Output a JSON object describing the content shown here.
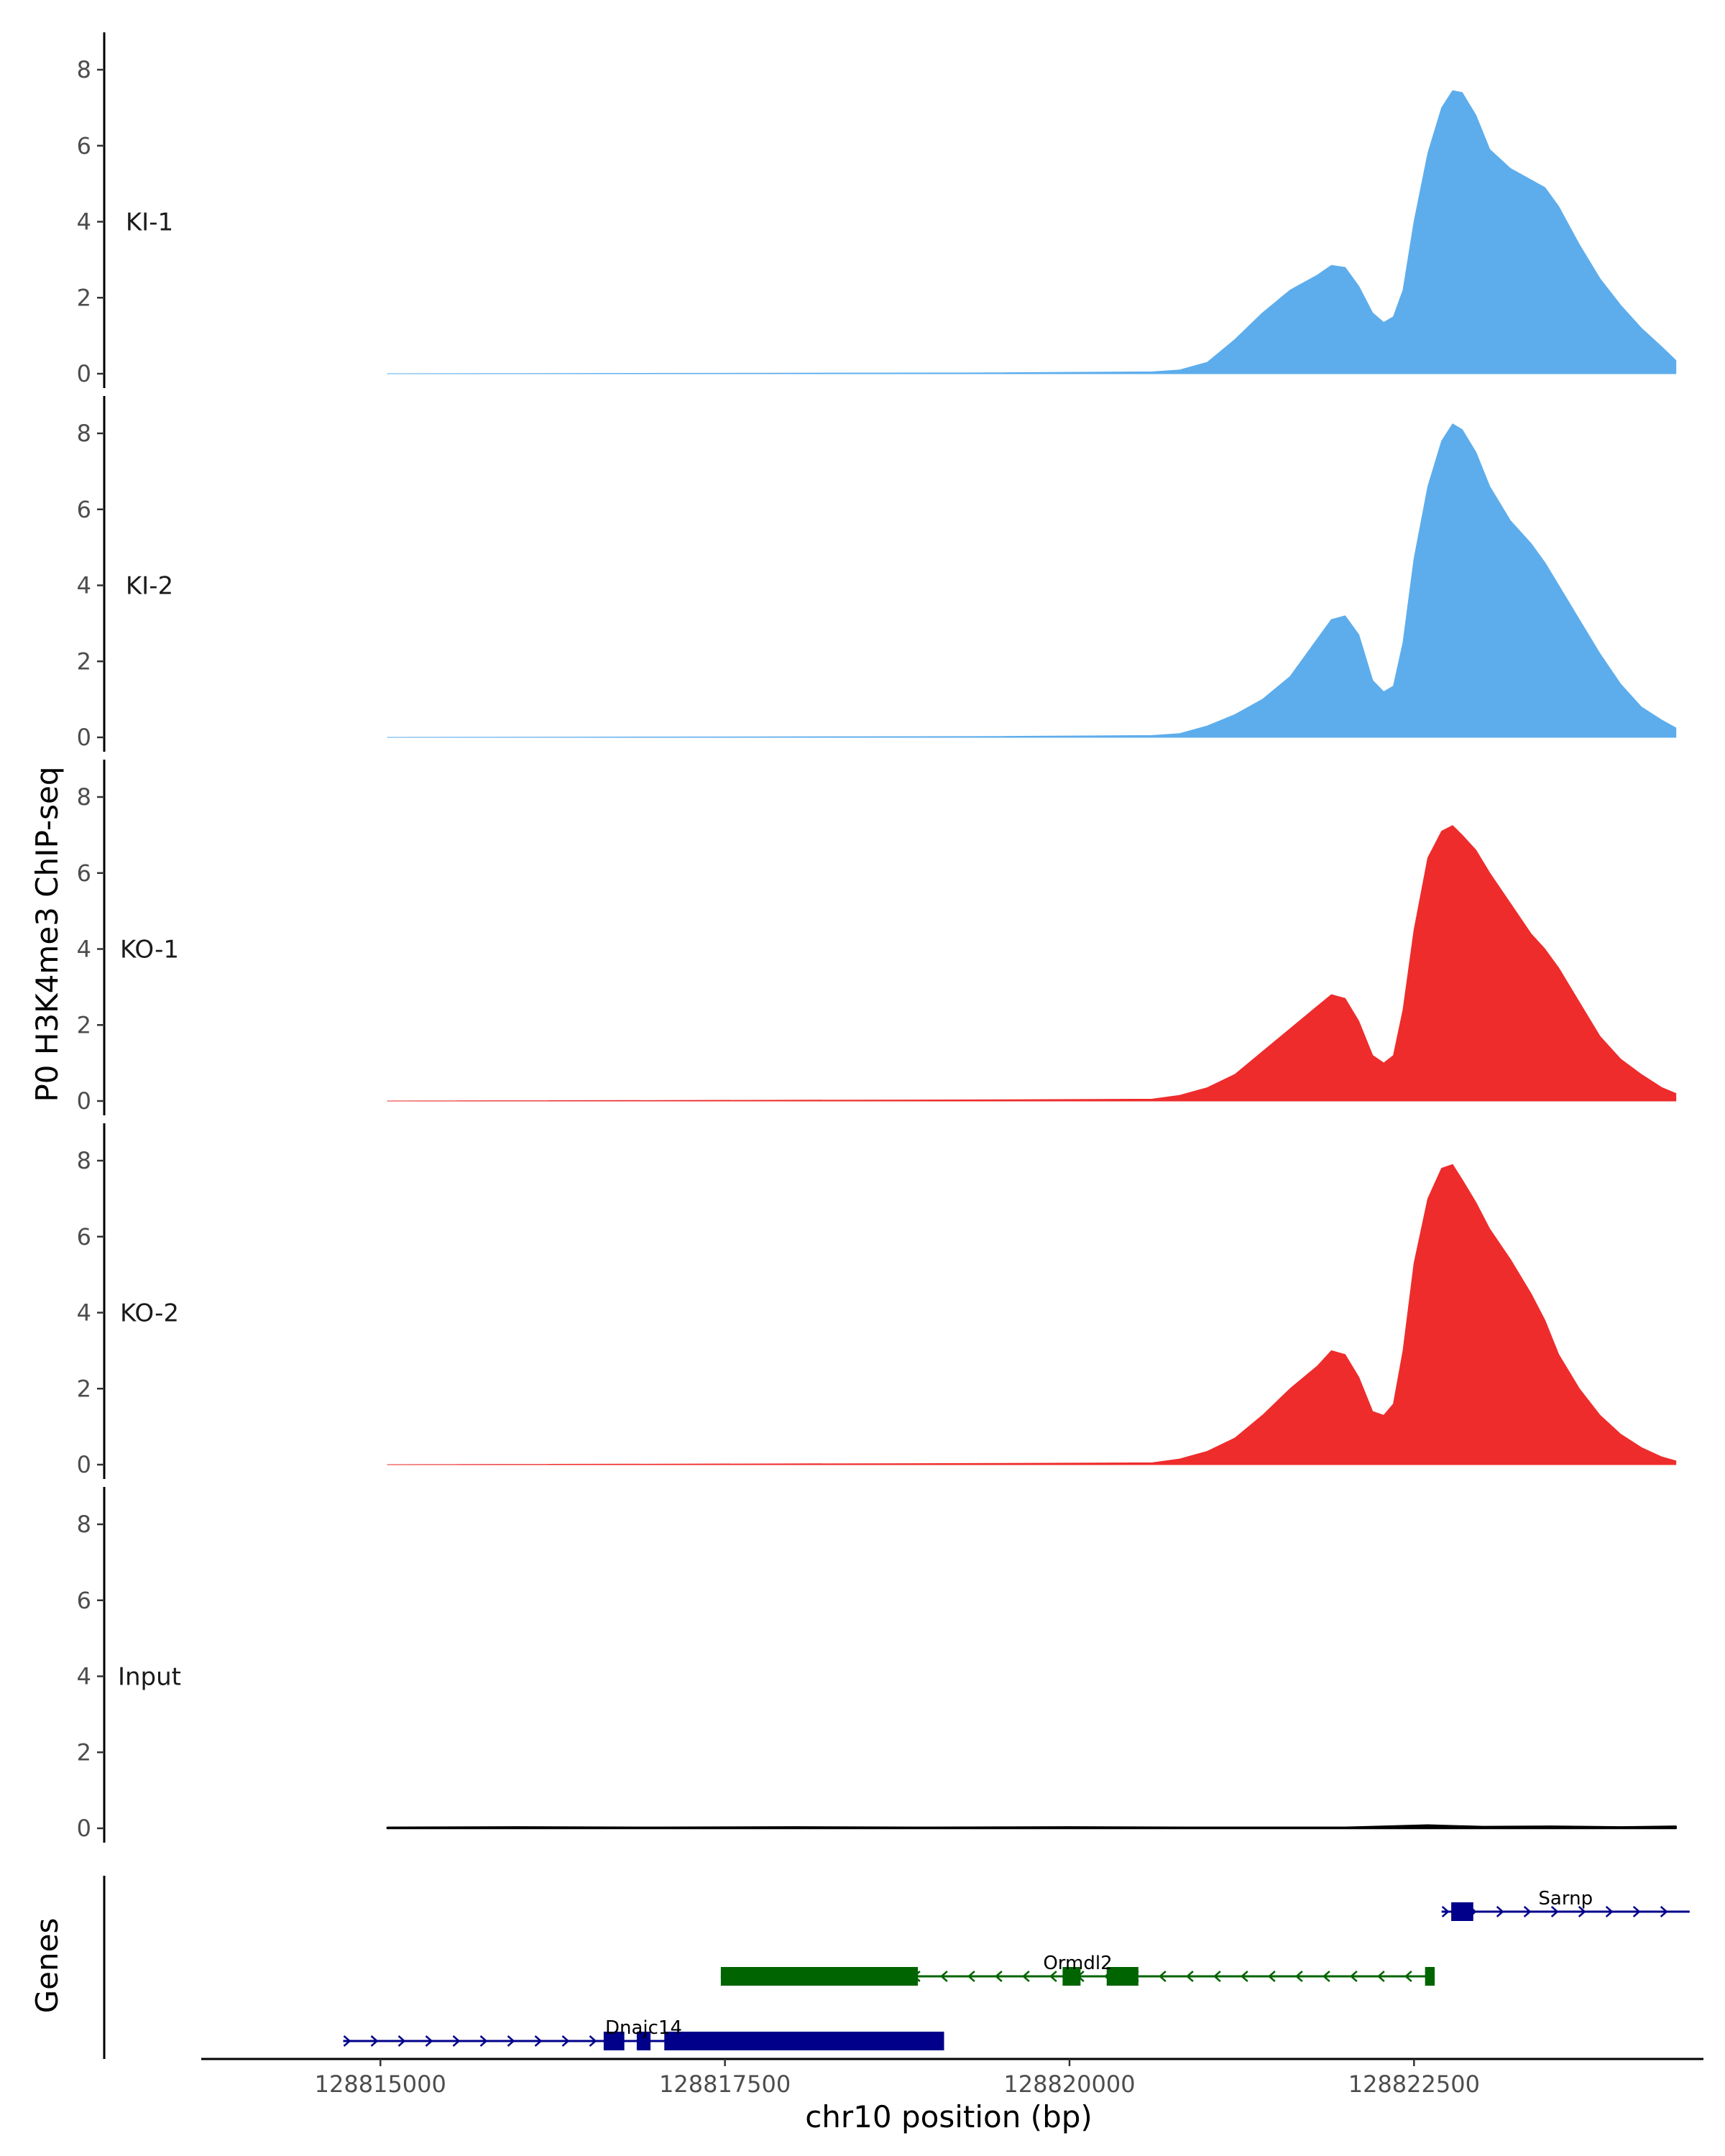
{
  "chart_data": {
    "type": "area",
    "ylabel": "P0 H3K4me3 ChIP-seq",
    "xlabel": "chr10 position (bp)",
    "genes_label": "Genes",
    "xlim": [
      128813700,
      128824600
    ],
    "ylim": [
      0,
      8.7
    ],
    "y_ticks": [
      0,
      2,
      4,
      6,
      8
    ],
    "x_ticks": [
      128815000,
      128817500,
      128820000,
      128822500
    ],
    "x_tick_labels": [
      "128815000",
      "128817500",
      "128820000",
      "128822500"
    ],
    "signal_x_range": [
      128815050,
      128824400
    ],
    "colors": {
      "KI": "#5DADEC",
      "KO": "#EE2C2C",
      "Input": "#000000",
      "gene_plus": "#00008B",
      "gene_minus": "#006400"
    },
    "series": [
      {
        "name": "KI-1",
        "color": "#5DADEC",
        "points": [
          [
            128815050,
            0.0
          ],
          [
            128819300,
            0.02
          ],
          [
            128820600,
            0.05
          ],
          [
            128820800,
            0.1
          ],
          [
            128821000,
            0.3
          ],
          [
            128821200,
            0.9
          ],
          [
            128821400,
            1.6
          ],
          [
            128821600,
            2.2
          ],
          [
            128821800,
            2.6
          ],
          [
            128821900,
            2.85
          ],
          [
            128822000,
            2.8
          ],
          [
            128822100,
            2.3
          ],
          [
            128822200,
            1.6
          ],
          [
            128822280,
            1.35
          ],
          [
            128822350,
            1.5
          ],
          [
            128822420,
            2.2
          ],
          [
            128822500,
            4.0
          ],
          [
            128822600,
            5.8
          ],
          [
            128822700,
            7.0
          ],
          [
            128822780,
            7.45
          ],
          [
            128822850,
            7.4
          ],
          [
            128822950,
            6.8
          ],
          [
            128823050,
            5.9
          ],
          [
            128823200,
            5.4
          ],
          [
            128823350,
            5.1
          ],
          [
            128823450,
            4.9
          ],
          [
            128823550,
            4.4
          ],
          [
            128823700,
            3.4
          ],
          [
            128823850,
            2.5
          ],
          [
            128824000,
            1.8
          ],
          [
            128824150,
            1.2
          ],
          [
            128824300,
            0.7
          ],
          [
            128824400,
            0.35
          ]
        ]
      },
      {
        "name": "KI-2",
        "color": "#5DADEC",
        "points": [
          [
            128815050,
            0.0
          ],
          [
            128819300,
            0.02
          ],
          [
            128820600,
            0.05
          ],
          [
            128820800,
            0.1
          ],
          [
            128821000,
            0.3
          ],
          [
            128821200,
            0.6
          ],
          [
            128821400,
            1.0
          ],
          [
            128821600,
            1.6
          ],
          [
            128821800,
            2.6
          ],
          [
            128821900,
            3.1
          ],
          [
            128822000,
            3.2
          ],
          [
            128822100,
            2.7
          ],
          [
            128822200,
            1.5
          ],
          [
            128822280,
            1.2
          ],
          [
            128822350,
            1.35
          ],
          [
            128822420,
            2.5
          ],
          [
            128822500,
            4.7
          ],
          [
            128822600,
            6.6
          ],
          [
            128822700,
            7.8
          ],
          [
            128822780,
            8.25
          ],
          [
            128822850,
            8.1
          ],
          [
            128822950,
            7.5
          ],
          [
            128823050,
            6.6
          ],
          [
            128823200,
            5.7
          ],
          [
            128823350,
            5.1
          ],
          [
            128823450,
            4.6
          ],
          [
            128823550,
            4.0
          ],
          [
            128823700,
            3.1
          ],
          [
            128823850,
            2.2
          ],
          [
            128824000,
            1.4
          ],
          [
            128824150,
            0.8
          ],
          [
            128824300,
            0.45
          ],
          [
            128824400,
            0.25
          ]
        ]
      },
      {
        "name": "KO-1",
        "color": "#EE2C2C",
        "points": [
          [
            128815050,
            0.0
          ],
          [
            128819300,
            0.03
          ],
          [
            128820600,
            0.05
          ],
          [
            128820800,
            0.15
          ],
          [
            128821000,
            0.35
          ],
          [
            128821200,
            0.7
          ],
          [
            128821400,
            1.3
          ],
          [
            128821600,
            1.9
          ],
          [
            128821800,
            2.5
          ],
          [
            128821900,
            2.8
          ],
          [
            128822000,
            2.7
          ],
          [
            128822100,
            2.1
          ],
          [
            128822200,
            1.2
          ],
          [
            128822280,
            1.0
          ],
          [
            128822350,
            1.2
          ],
          [
            128822420,
            2.4
          ],
          [
            128822500,
            4.5
          ],
          [
            128822600,
            6.4
          ],
          [
            128822700,
            7.1
          ],
          [
            128822780,
            7.25
          ],
          [
            128822850,
            7.0
          ],
          [
            128822950,
            6.6
          ],
          [
            128823050,
            6.0
          ],
          [
            128823200,
            5.2
          ],
          [
            128823350,
            4.4
          ],
          [
            128823450,
            4.0
          ],
          [
            128823550,
            3.5
          ],
          [
            128823700,
            2.6
          ],
          [
            128823850,
            1.7
          ],
          [
            128824000,
            1.1
          ],
          [
            128824150,
            0.7
          ],
          [
            128824300,
            0.35
          ],
          [
            128824400,
            0.2
          ]
        ]
      },
      {
        "name": "KO-2",
        "color": "#EE2C2C",
        "points": [
          [
            128815050,
            0.0
          ],
          [
            128819300,
            0.03
          ],
          [
            128820600,
            0.05
          ],
          [
            128820800,
            0.15
          ],
          [
            128821000,
            0.35
          ],
          [
            128821200,
            0.7
          ],
          [
            128821400,
            1.3
          ],
          [
            128821600,
            2.0
          ],
          [
            128821800,
            2.6
          ],
          [
            128821900,
            3.0
          ],
          [
            128822000,
            2.9
          ],
          [
            128822100,
            2.3
          ],
          [
            128822200,
            1.4
          ],
          [
            128822280,
            1.3
          ],
          [
            128822350,
            1.6
          ],
          [
            128822420,
            3.0
          ],
          [
            128822500,
            5.3
          ],
          [
            128822600,
            7.0
          ],
          [
            128822700,
            7.8
          ],
          [
            128822780,
            7.9
          ],
          [
            128822850,
            7.5
          ],
          [
            128822950,
            6.9
          ],
          [
            128823050,
            6.2
          ],
          [
            128823200,
            5.4
          ],
          [
            128823350,
            4.5
          ],
          [
            128823450,
            3.8
          ],
          [
            128823550,
            2.9
          ],
          [
            128823700,
            2.0
          ],
          [
            128823850,
            1.3
          ],
          [
            128824000,
            0.8
          ],
          [
            128824150,
            0.45
          ],
          [
            128824300,
            0.2
          ],
          [
            128824400,
            0.1
          ]
        ]
      },
      {
        "name": "Input",
        "color": "#000000",
        "points": [
          [
            128815050,
            0.02
          ],
          [
            128816000,
            0.03
          ],
          [
            128817000,
            0.02
          ],
          [
            128818000,
            0.03
          ],
          [
            128819000,
            0.02
          ],
          [
            128820000,
            0.03
          ],
          [
            128821000,
            0.02
          ],
          [
            128822000,
            0.02
          ],
          [
            128822600,
            0.08
          ],
          [
            128823000,
            0.04
          ],
          [
            128823500,
            0.05
          ],
          [
            128824000,
            0.03
          ],
          [
            128824400,
            0.05
          ]
        ]
      }
    ],
    "genes": [
      {
        "name": "Sarnp",
        "strand": "+",
        "color": "#00008B",
        "row": 0,
        "start": 128822700,
        "end": 128824500,
        "exons": [
          [
            128822770,
            128822930
          ]
        ]
      },
      {
        "name": "Ormdl2",
        "strand": "-",
        "color": "#006400",
        "row": 1,
        "start": 128817470,
        "end": 128822650,
        "exons": [
          [
            128817470,
            128818900
          ],
          [
            128819950,
            128820080
          ],
          [
            128820270,
            128820500
          ],
          [
            128822580,
            128822650
          ]
        ]
      },
      {
        "name": "Dnajc14",
        "strand": "+",
        "color": "#00008B",
        "row": 2,
        "start": 128814730,
        "end": 128819090,
        "exons": [
          [
            128816620,
            128816770
          ],
          [
            128816860,
            128816960
          ],
          [
            128817060,
            128819090
          ]
        ]
      }
    ]
  }
}
